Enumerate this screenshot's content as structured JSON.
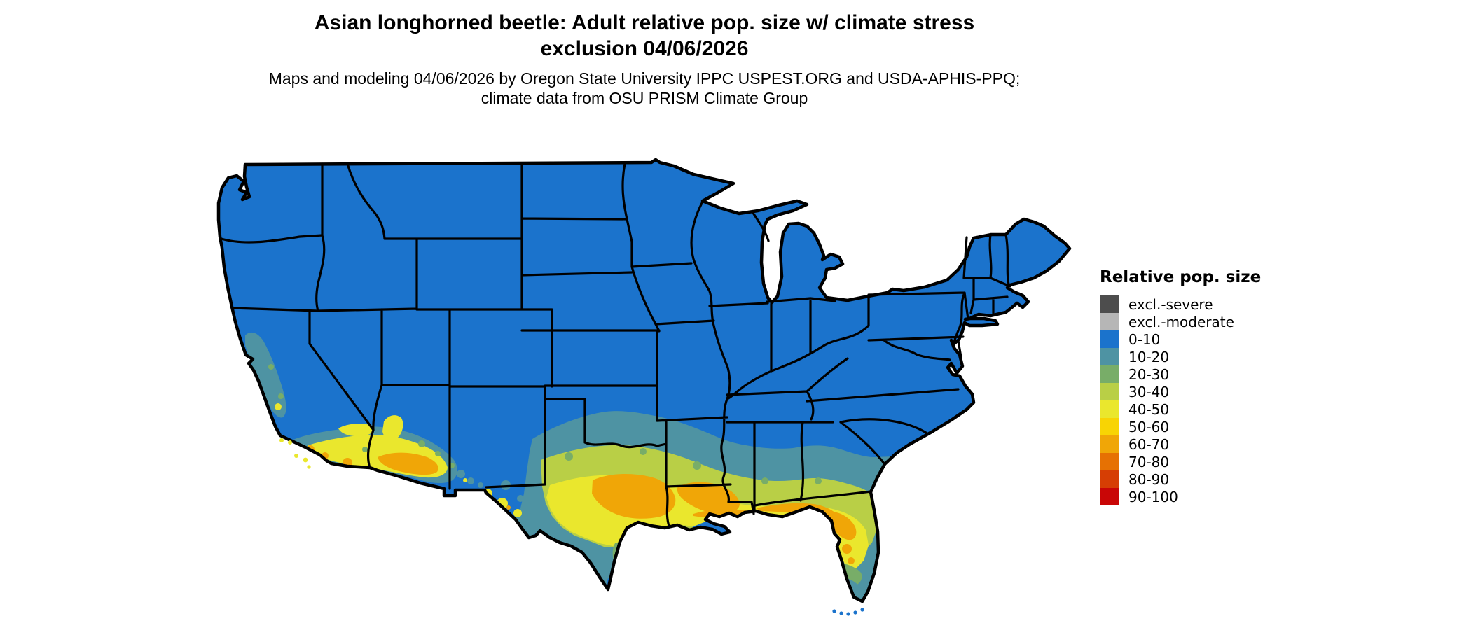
{
  "header": {
    "title": "Asian longhorned beetle: Adult relative pop. size w/ climate stress exclusion 04/06/2026",
    "subtitle": "Maps and modeling 04/06/2026 by Oregon State University IPPC USPEST.ORG and USDA-APHIS-PPQ; climate data from OSU PRISM Climate Group"
  },
  "legend": {
    "title": "Relative pop. size",
    "items": [
      {
        "label": "excl.-severe",
        "color": "#4d4d4d"
      },
      {
        "label": "excl.-moderate",
        "color": "#b6b6b6"
      },
      {
        "label": "0-10",
        "color": "#1b73cc"
      },
      {
        "label": "10-20",
        "color": "#4e93a3"
      },
      {
        "label": "20-30",
        "color": "#78ad68"
      },
      {
        "label": "30-40",
        "color": "#b9cf46"
      },
      {
        "label": "40-50",
        "color": "#eae72d"
      },
      {
        "label": "50-60",
        "color": "#f8d404"
      },
      {
        "label": "60-70",
        "color": "#f0a607"
      },
      {
        "label": "70-80",
        "color": "#e67103"
      },
      {
        "label": "80-90",
        "color": "#d63e04"
      },
      {
        "label": "90-100",
        "color": "#c90606"
      }
    ]
  },
  "map": {
    "name": "contiguous-united-states",
    "background_color": "#ffffff",
    "state_border_color": "#000000",
    "base_class": "0-10",
    "regions": [
      {
        "region": "Northern, central and eastern US (most states)",
        "value": "0-10"
      },
      {
        "region": "California Central Valley and central coast",
        "value": "10-20"
      },
      {
        "region": "Southern California coast, deserts and Channel Islands",
        "value": "40-70"
      },
      {
        "region": "Southwestern Arizona",
        "value": "50-70"
      },
      {
        "region": "Central Texas through the Gulf Coast",
        "value": "30-70"
      },
      {
        "region": "Louisiana and Gulf Coast strip",
        "value": "50-70"
      },
      {
        "region": "Deep South coastal plain (MS, AL, GA, SC)",
        "value": "10-40"
      },
      {
        "region": "Florida peninsula",
        "value": "20-70"
      },
      {
        "region": "South Texas brush country and south Florida",
        "value": "10-30"
      },
      {
        "region": "Florida Keys and Rio Grande tip of Texas",
        "value": "0-10"
      }
    ]
  }
}
